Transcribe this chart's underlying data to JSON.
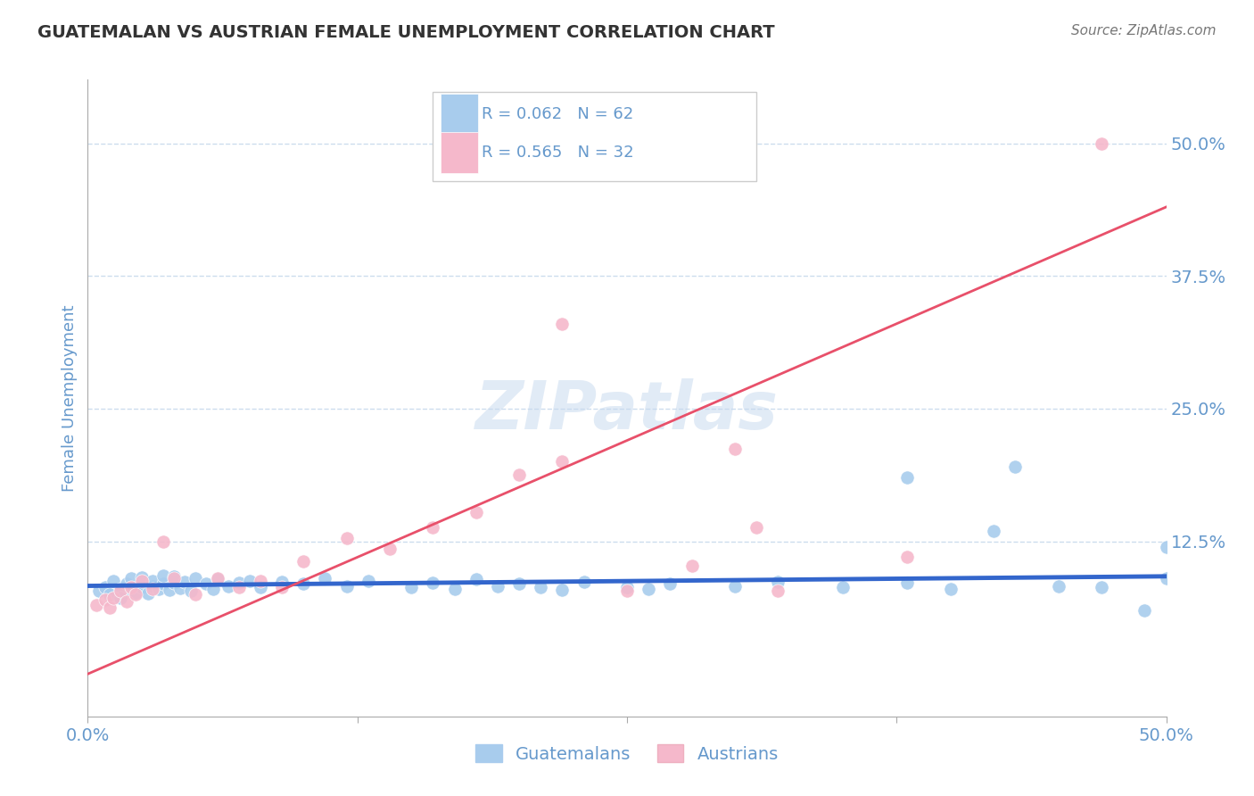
{
  "title": "GUATEMALAN VS AUSTRIAN FEMALE UNEMPLOYMENT CORRELATION CHART",
  "source": "Source: ZipAtlas.com",
  "ylabel": "Female Unemployment",
  "watermark": "ZIPatlas",
  "legend_guatemalan": "Guatemalans",
  "legend_austrian": "Austrians",
  "R_guatemalan": 0.062,
  "N_guatemalan": 62,
  "R_austrian": 0.565,
  "N_austrian": 32,
  "xlim": [
    0.0,
    0.5
  ],
  "ylim": [
    -0.04,
    0.56
  ],
  "yticks": [
    0.125,
    0.25,
    0.375,
    0.5
  ],
  "ytick_labels": [
    "12.5%",
    "25.0%",
    "37.5%",
    "50.0%"
  ],
  "xtick_positions": [
    0.0,
    0.125,
    0.25,
    0.375,
    0.5
  ],
  "xtick_labels": [
    "0.0%",
    "",
    "",
    "",
    "50.0%"
  ],
  "color_guatemalan": "#A8CCED",
  "color_austrian": "#F5B8CB",
  "color_trendline_guatemalan": "#3366CC",
  "color_trendline_austrian": "#E8506A",
  "title_color": "#333333",
  "axis_label_color": "#6699CC",
  "source_color": "#777777",
  "background_color": "#FFFFFF",
  "grid_color": "#CCDDEE",
  "guatemalan_x": [
    0.005,
    0.008,
    0.01,
    0.012,
    0.015,
    0.015,
    0.018,
    0.02,
    0.02,
    0.022,
    0.025,
    0.025,
    0.028,
    0.03,
    0.03,
    0.033,
    0.035,
    0.035,
    0.038,
    0.04,
    0.04,
    0.043,
    0.045,
    0.048,
    0.05,
    0.055,
    0.058,
    0.06,
    0.065,
    0.07,
    0.075,
    0.08,
    0.09,
    0.1,
    0.11,
    0.12,
    0.13,
    0.15,
    0.16,
    0.17,
    0.18,
    0.19,
    0.2,
    0.21,
    0.22,
    0.23,
    0.25,
    0.26,
    0.27,
    0.3,
    0.32,
    0.35,
    0.38,
    0.4,
    0.42,
    0.45,
    0.47,
    0.49,
    0.5,
    0.38,
    0.43,
    0.5
  ],
  "guatemalan_y": [
    0.078,
    0.082,
    0.075,
    0.088,
    0.08,
    0.072,
    0.085,
    0.079,
    0.09,
    0.077,
    0.082,
    0.091,
    0.076,
    0.083,
    0.088,
    0.08,
    0.085,
    0.093,
    0.079,
    0.086,
    0.092,
    0.081,
    0.087,
    0.078,
    0.09,
    0.085,
    0.08,
    0.089,
    0.083,
    0.086,
    0.088,
    0.082,
    0.087,
    0.085,
    0.09,
    0.083,
    0.088,
    0.082,
    0.086,
    0.08,
    0.089,
    0.083,
    0.085,
    0.082,
    0.079,
    0.087,
    0.082,
    0.08,
    0.085,
    0.083,
    0.087,
    0.082,
    0.086,
    0.08,
    0.135,
    0.083,
    0.082,
    0.06,
    0.09,
    0.185,
    0.195,
    0.12
  ],
  "austrian_x": [
    0.004,
    0.008,
    0.01,
    0.012,
    0.015,
    0.018,
    0.02,
    0.022,
    0.025,
    0.03,
    0.035,
    0.04,
    0.05,
    0.06,
    0.07,
    0.08,
    0.09,
    0.1,
    0.12,
    0.14,
    0.16,
    0.18,
    0.2,
    0.22,
    0.25,
    0.28,
    0.3,
    0.31,
    0.32,
    0.38,
    0.47,
    0.22
  ],
  "austrian_y": [
    0.065,
    0.07,
    0.062,
    0.072,
    0.078,
    0.068,
    0.082,
    0.075,
    0.088,
    0.08,
    0.125,
    0.09,
    0.075,
    0.09,
    0.082,
    0.088,
    0.082,
    0.106,
    0.128,
    0.118,
    0.138,
    0.152,
    0.188,
    0.2,
    0.078,
    0.102,
    0.212,
    0.138,
    0.078,
    0.11,
    0.5,
    0.33
  ],
  "trendline_x_start": 0.0,
  "trendline_x_end": 0.5,
  "guatemalan_trend_y_start": 0.083,
  "guatemalan_trend_y_end": 0.092,
  "austrian_trend_y_start": 0.0,
  "austrian_trend_y_end": 0.44
}
